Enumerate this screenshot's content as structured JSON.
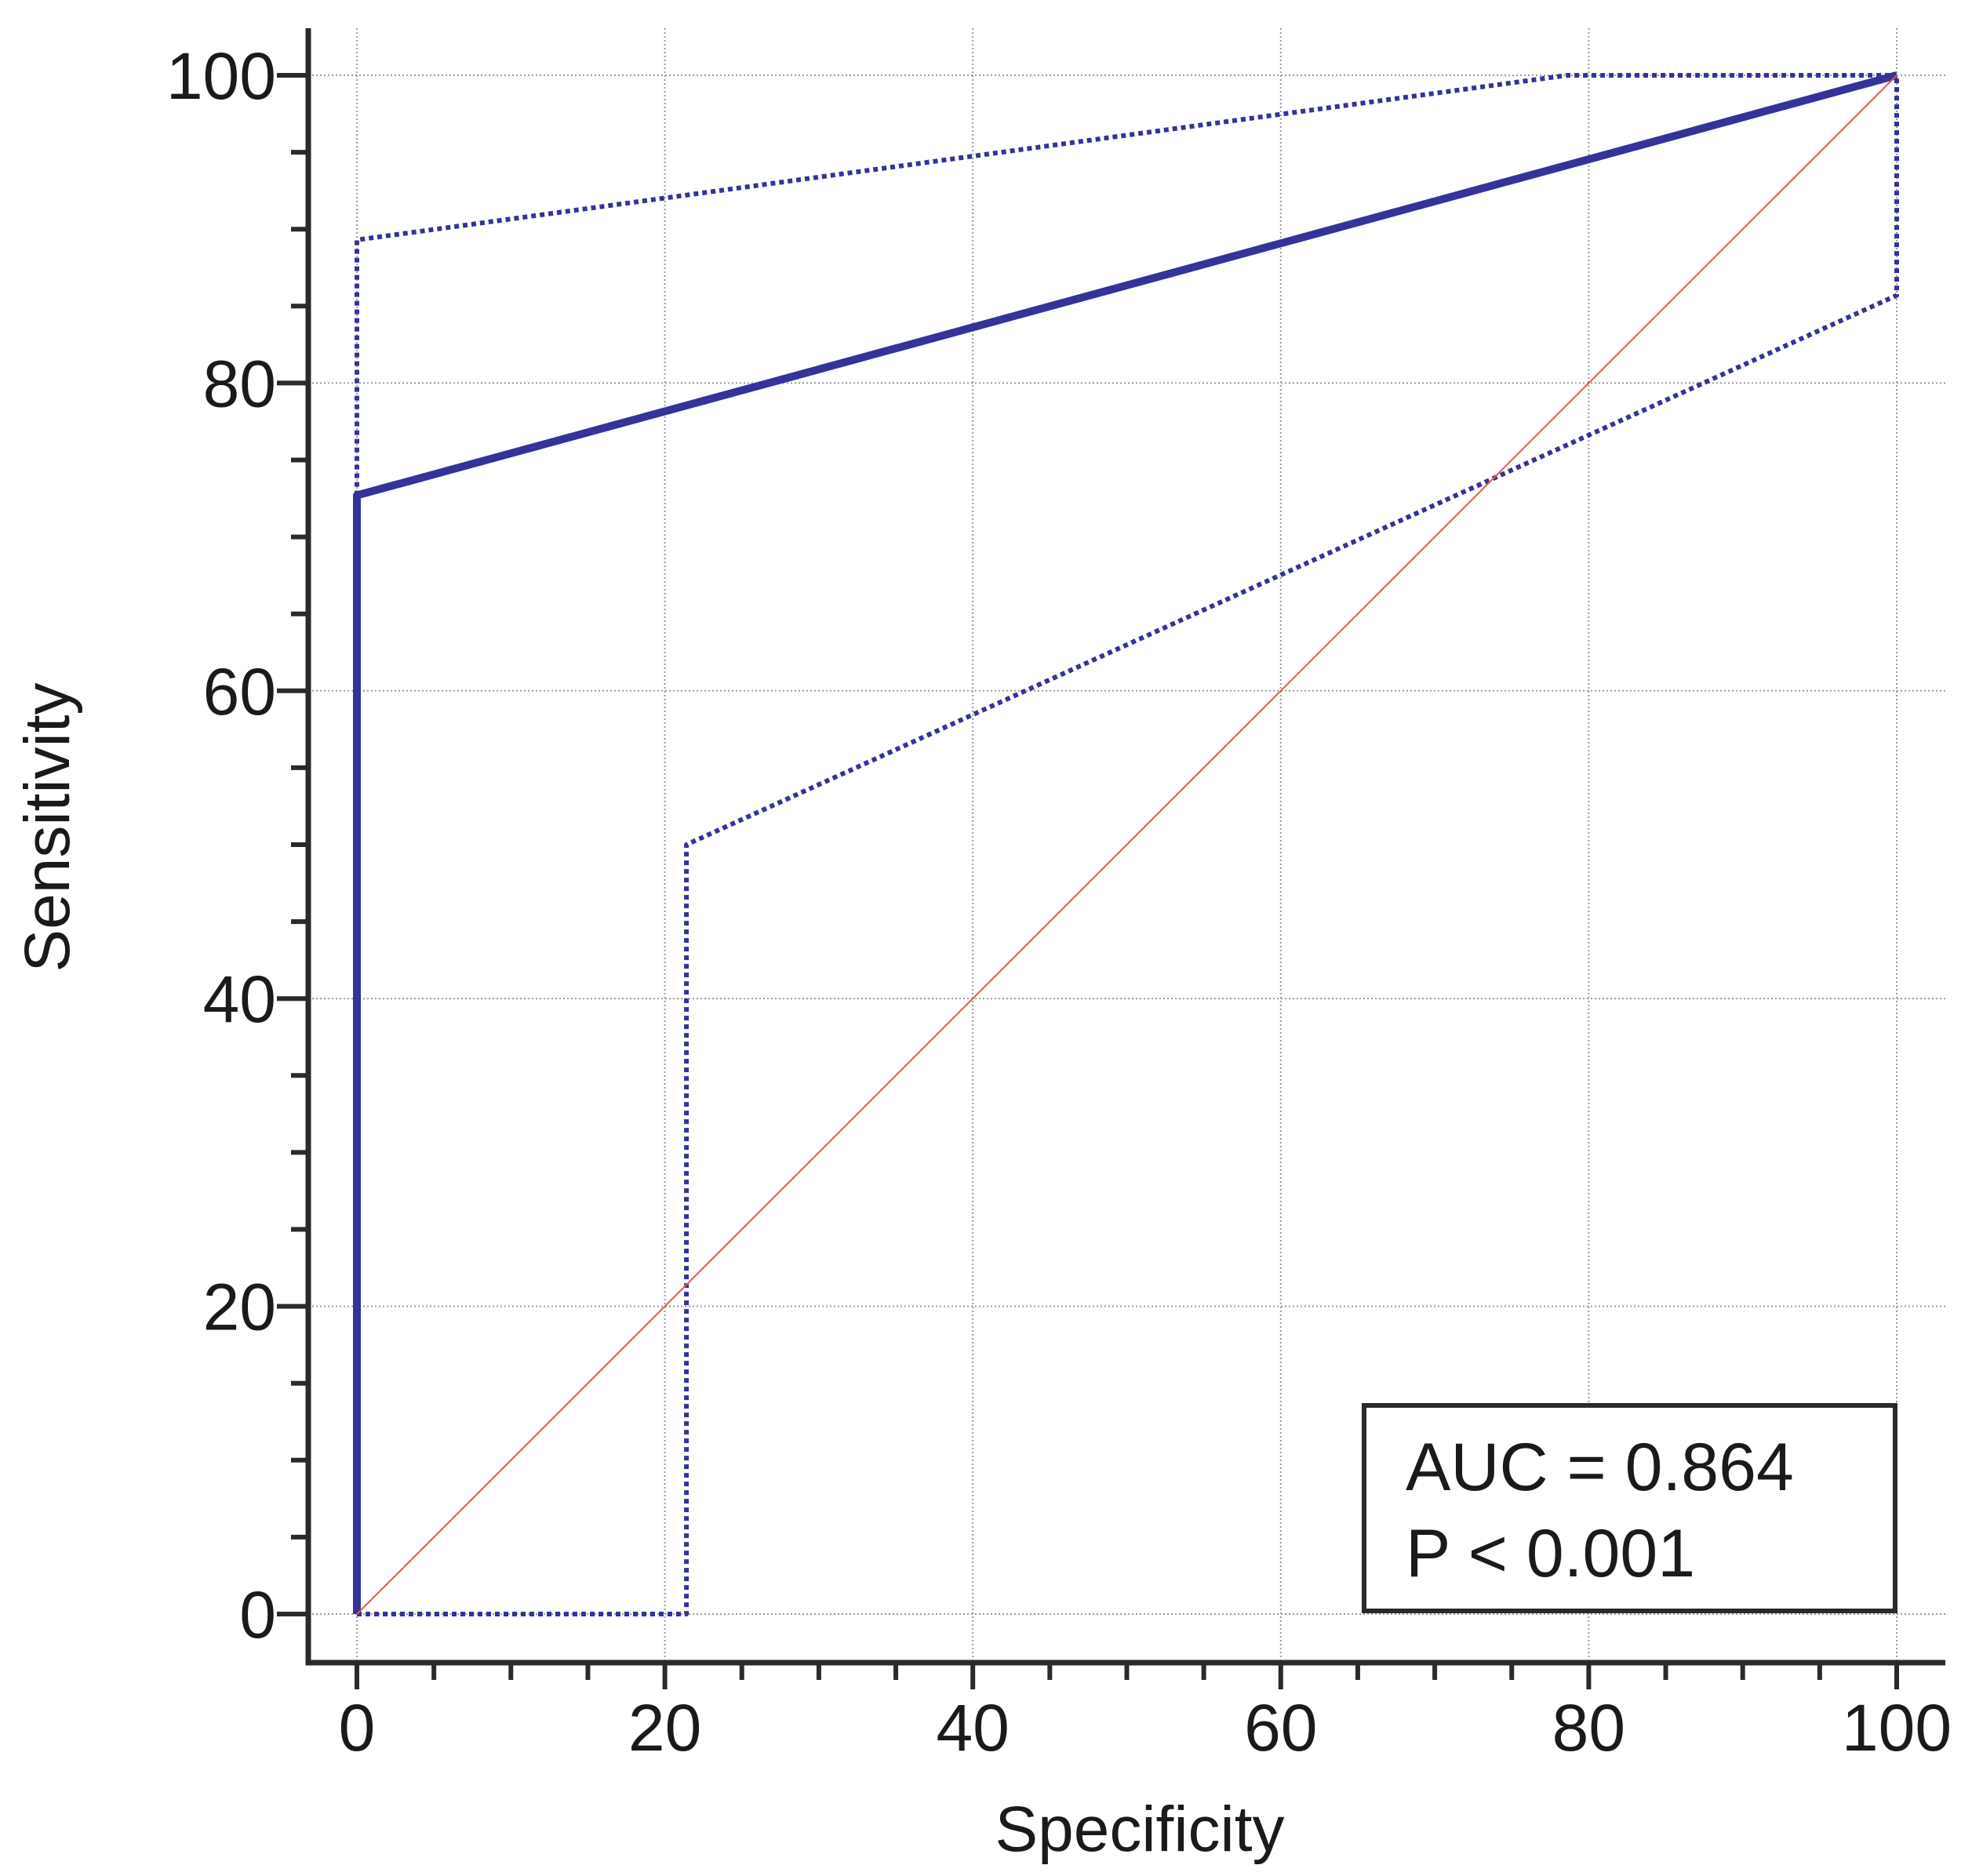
{
  "chart_data": {
    "type": "line",
    "xlabel": "Specificity",
    "ylabel": "Sensitivity",
    "xlim": [
      0,
      100
    ],
    "ylim": [
      0,
      100
    ],
    "x_ticks": [
      "0",
      "20",
      "40",
      "60",
      "80",
      "100"
    ],
    "y_ticks": [
      "0",
      "20",
      "40",
      "60",
      "80",
      "100"
    ],
    "grid": true,
    "series": [
      {
        "role": "roc-curve",
        "style": "solid",
        "color": "#33339a",
        "points": [
          [
            0,
            0
          ],
          [
            0,
            72.7
          ],
          [
            100,
            100
          ]
        ]
      },
      {
        "role": "upper-confidence-bound",
        "style": "dotted",
        "color": "#33339a",
        "points": [
          [
            0,
            72.7
          ],
          [
            0,
            89.3
          ],
          [
            78.6,
            100
          ],
          [
            100,
            100
          ]
        ]
      },
      {
        "role": "lower-confidence-bound",
        "style": "dotted",
        "color": "#33339a",
        "points": [
          [
            0,
            0
          ],
          [
            21.4,
            0
          ],
          [
            21.4,
            50
          ],
          [
            100,
            85.7
          ],
          [
            100,
            100
          ]
        ]
      },
      {
        "role": "reference-diagonal",
        "style": "thin",
        "color": "#e05a4a",
        "points": [
          [
            0,
            0
          ],
          [
            100,
            100
          ]
        ]
      }
    ],
    "annotations": [
      {
        "text": "AUC = 0.864"
      },
      {
        "text": "P < 0.001"
      }
    ],
    "annotation_placement": "bottom-right"
  }
}
